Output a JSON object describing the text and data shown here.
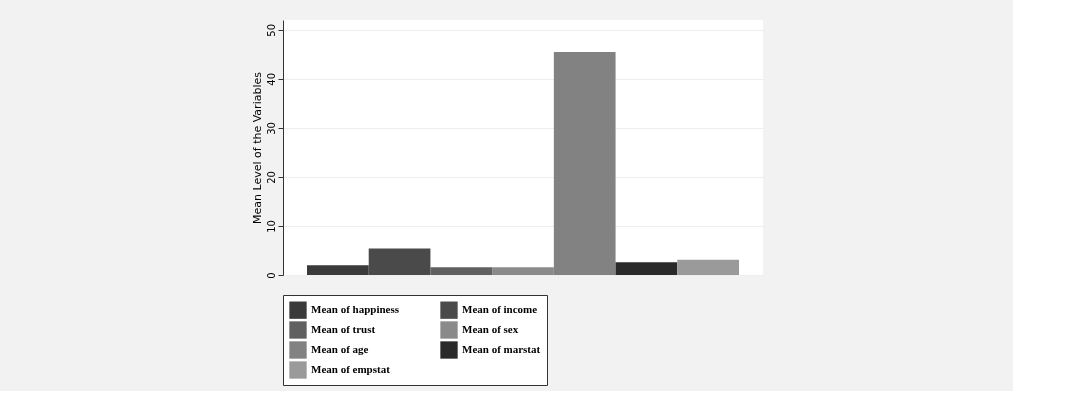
{
  "chart_data": {
    "type": "bar",
    "ylabel": "Mean Level of the Variables",
    "categories": [
      null
    ],
    "series": [
      {
        "name": "Mean of happiness",
        "color": "#3a3a3a",
        "values": [
          2.0
        ]
      },
      {
        "name": "Mean of income",
        "color": "#4a4a4a",
        "values": [
          5.4
        ]
      },
      {
        "name": "Mean of trust",
        "color": "#606060",
        "values": [
          1.6
        ]
      },
      {
        "name": "Mean of sex",
        "color": "#8a8a8a",
        "values": [
          1.6
        ]
      },
      {
        "name": "Mean of age",
        "color": "#828282",
        "values": [
          45.5
        ]
      },
      {
        "name": "Mean of marstat",
        "color": "#2a2a2a",
        "values": [
          2.6
        ]
      },
      {
        "name": "Mean of empstat",
        "color": "#9a9a9a",
        "values": [
          3.1
        ]
      }
    ],
    "ylim": [
      0,
      52
    ],
    "yticks": [
      0,
      10,
      20,
      30,
      40,
      50
    ],
    "grid": "y",
    "legend": "bottom"
  }
}
